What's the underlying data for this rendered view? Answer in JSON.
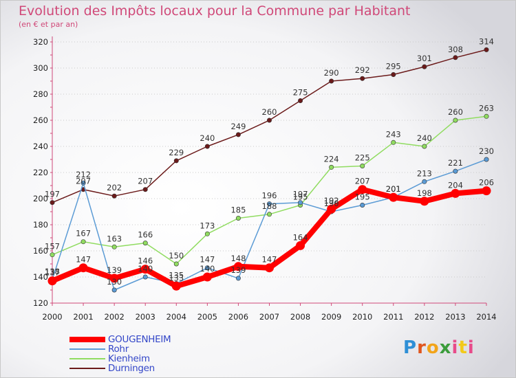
{
  "title": "Evolution des Impôts locaux pour la Commune par Habitant",
  "subtitle": "(en € et par an)",
  "logo": {
    "text": "Proxiti",
    "letters": [
      "P",
      "r",
      "o",
      "x",
      "i",
      "t",
      "i"
    ]
  },
  "chart_data": {
    "type": "line",
    "x": [
      2000,
      2001,
      2002,
      2003,
      2004,
      2005,
      2006,
      2007,
      2008,
      2009,
      2010,
      2011,
      2012,
      2013,
      2014
    ],
    "x_tick_labels": [
      "2000",
      "2001",
      "2002",
      "2003",
      "2004",
      "2005",
      "2006",
      "2007",
      "2008",
      "2009",
      "2010",
      "2011",
      "2012",
      "2013",
      "2014"
    ],
    "ylim": [
      120,
      320
    ],
    "y_ticks": [
      120,
      140,
      160,
      180,
      200,
      220,
      240,
      260,
      280,
      300,
      320
    ],
    "y_tick_labels": [
      "120",
      "140",
      "160",
      "180",
      "200",
      "220",
      "240",
      "260",
      "280",
      "300",
      "320"
    ],
    "grid": "horizontal dotted",
    "legend_position": "bottom-left",
    "series": [
      {
        "name": "Durningen",
        "color": "#6b1a1a",
        "values": [
          197,
          207,
          202,
          207,
          229,
          240,
          249,
          260,
          275,
          290,
          292,
          295,
          301,
          308,
          314
        ],
        "labels": [
          "197",
          "207",
          "202",
          "207",
          "229",
          "240",
          "249",
          "260",
          "275",
          "290",
          "292",
          "295",
          "301",
          "308",
          "314"
        ]
      },
      {
        "name": "Kienheim",
        "color": "#90dc60",
        "values": [
          157,
          167,
          163,
          166,
          150,
          173,
          185,
          188,
          195,
          224,
          225,
          243,
          240,
          260,
          263
        ],
        "labels": [
          "157",
          "167",
          "163",
          "166",
          "150",
          "173",
          "185",
          "188",
          "195",
          "224",
          "225",
          "243",
          "240",
          "260",
          "263"
        ]
      },
      {
        "name": "Rohr",
        "color": "#5b9bd5",
        "values": [
          138,
          212,
          130,
          140,
          135,
          147,
          139,
          196,
          197,
          190,
          195,
          201,
          213,
          221,
          230
        ],
        "labels": [
          "138",
          "212",
          "130",
          "140",
          "135",
          "147",
          "139",
          "196",
          "197",
          "190",
          "195",
          "201",
          "213",
          "221",
          "230"
        ]
      },
      {
        "name": "GOUGENHEIM",
        "color": "#ff0000",
        "values": [
          137,
          147,
          139,
          146,
          133,
          140,
          148,
          147,
          164,
          192,
          207,
          201,
          198,
          204,
          206
        ],
        "labels": [
          "137",
          "147",
          "139",
          "146",
          "133",
          "140",
          "148",
          "147",
          "164",
          "192",
          "207",
          "201",
          "198",
          "204",
          "206"
        ]
      }
    ],
    "legend_order": [
      "GOUGENHEIM",
      "Rohr",
      "Kienheim",
      "Durningen"
    ]
  }
}
